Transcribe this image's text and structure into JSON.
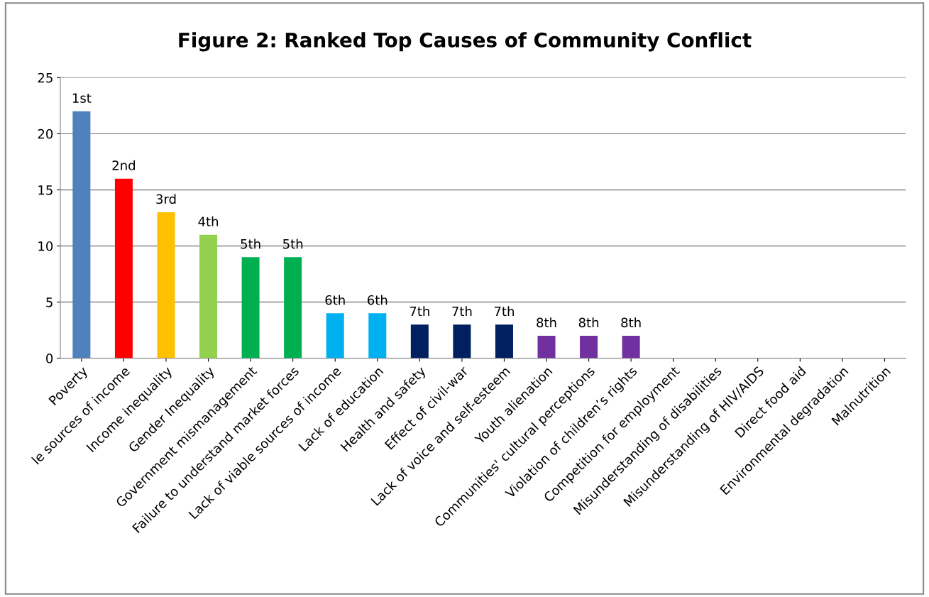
{
  "chart_data": {
    "type": "bar",
    "title": "Figure 2: Ranked Top Causes of Community Conflict",
    "categories": [
      "Poverty",
      "le sources of income",
      "Income inequality",
      "Gender Inequality",
      "Government mismanagement",
      "Failure to understand market forces",
      "Lack of viable sources of income",
      "Lack of education",
      "Health and safety",
      "Effect of civil-war",
      "Lack of voice and self-esteem",
      "Youth alienation",
      "Communities' cultural perceptions",
      "Violation of children’s rights",
      "Competition for employment",
      "Misunderstanding of disabilities",
      "Misunderstanding of HIV/AIDS",
      "Direct food aid",
      "Environmental degradation",
      "Malnutrition"
    ],
    "values": [
      22,
      16,
      13,
      11,
      9,
      9,
      4,
      4,
      3,
      3,
      3,
      2,
      2,
      2,
      0,
      0,
      0,
      0,
      0,
      0
    ],
    "colors": [
      "#4f81bd",
      "#ff0000",
      "#ffc000",
      "#92d050",
      "#00b050",
      "#00b050",
      "#00b0f0",
      "#00b0f0",
      "#002060",
      "#002060",
      "#002060",
      "#7030a0",
      "#7030a0",
      "#7030a0",
      "#7030a0",
      "#7030a0",
      "#7030a0",
      "#7030a0",
      "#7030a0",
      "#7030a0"
    ],
    "annotations": [
      {
        "text": "1st",
        "x": "Poverty",
        "y": 22
      },
      {
        "text": "2nd",
        "x": "le sources of income",
        "y": 16
      },
      {
        "text": "3rd",
        "x": "Income inequality",
        "y": 13
      },
      {
        "text": "4th",
        "x": "Gender Inequality",
        "y": 11
      },
      {
        "text": "5th",
        "x": "Government mismanagement",
        "y": 9
      },
      {
        "text": "5th",
        "x": "Failure to understand market forces",
        "y": 9
      },
      {
        "text": "6th",
        "x": "Lack of viable sources of income",
        "y": 4
      },
      {
        "text": "6th",
        "x": "Lack of education",
        "y": 4
      },
      {
        "text": "7th",
        "x": "Health and safety",
        "y": 3
      },
      {
        "text": "7th",
        "x": "Effect of civil-war",
        "y": 3
      },
      {
        "text": "7th",
        "x": "Lack of voice and self-esteem",
        "y": 3
      },
      {
        "text": "8th",
        "x": "Youth alienation",
        "y": 2
      },
      {
        "text": "8th",
        "x": "Communities' cultural perceptions",
        "y": 2
      },
      {
        "text": "8th",
        "x": "Violation of children’s rights",
        "y": 2
      }
    ],
    "ylim": [
      0,
      25
    ],
    "yticks": [
      0,
      5,
      10,
      15,
      20,
      25
    ],
    "grid": "y",
    "legend": false
  }
}
